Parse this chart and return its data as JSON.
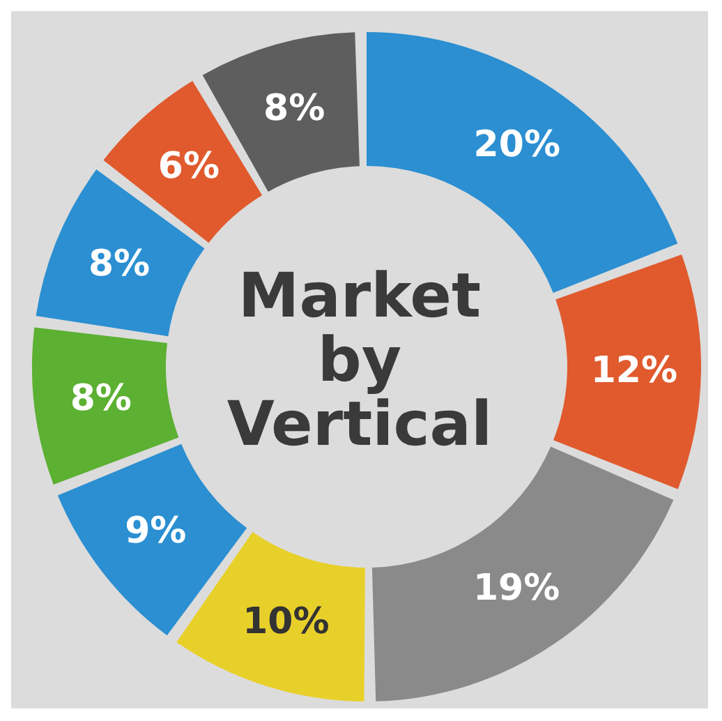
{
  "chart_data": {
    "type": "donut",
    "title": "Market by Vertical",
    "categories": [
      null,
      null,
      null,
      null,
      null,
      null,
      null,
      null,
      null
    ],
    "values": [
      20,
      12,
      19,
      10,
      9,
      8,
      8,
      6,
      8
    ],
    "colors": [
      "#2b8fd2",
      "#e05a2e",
      "#8a8a8a",
      "#e8d02a",
      "#2b8fd2",
      "#5cb032",
      "#2b8fd2",
      "#e05a2e",
      "#5e5e5e"
    ],
    "value_labels": [
      "20%",
      "12%",
      "19%",
      "10%",
      "9%",
      "8%",
      "8%",
      "6%",
      "8%"
    ]
  }
}
